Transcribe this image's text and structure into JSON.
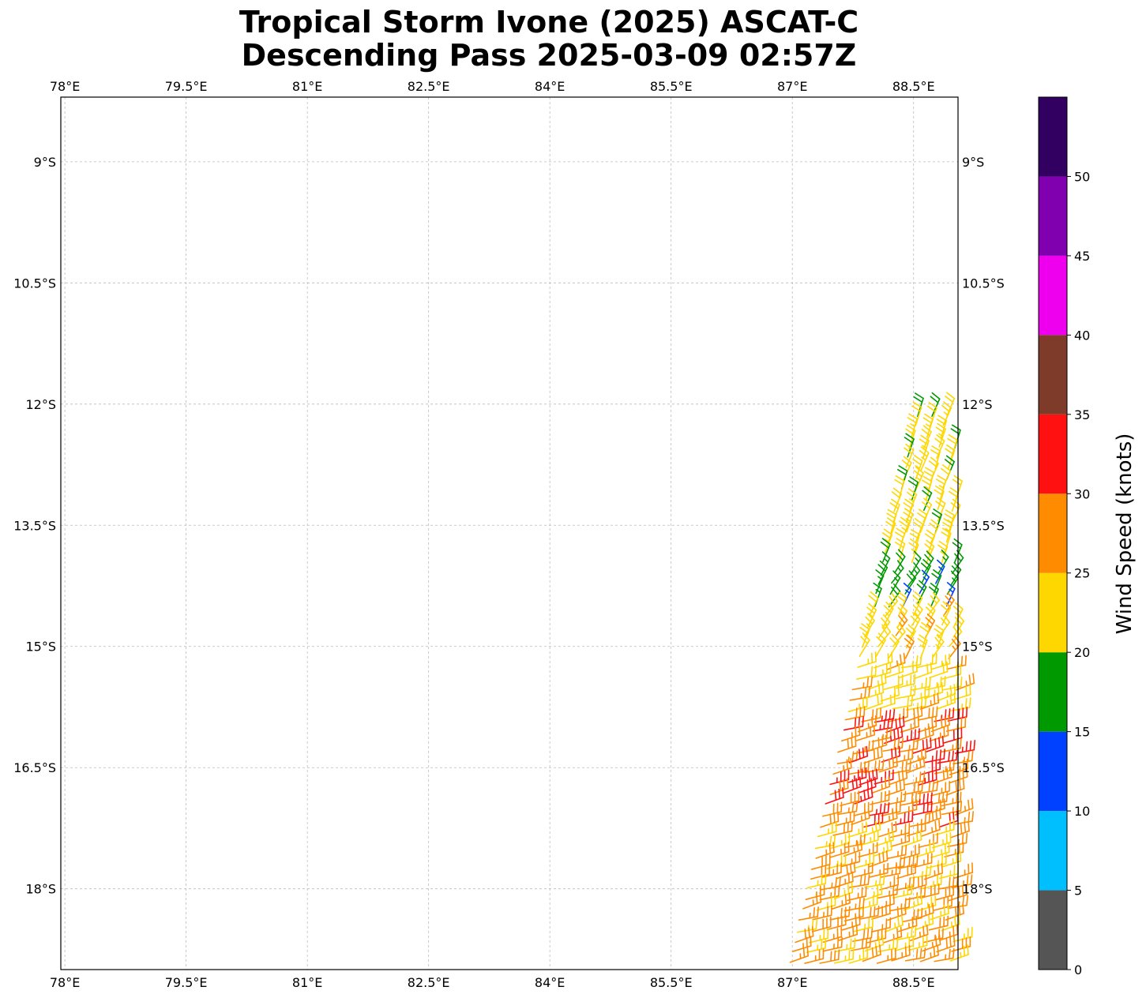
{
  "chart_data": {
    "type": "scatter",
    "subtype": "wind-barbs",
    "title": "Tropical Storm Ivone (2025) ASCAT-C",
    "subtitle": "Descending Pass 2025-03-09 02:57Z",
    "x_ticks": [
      "78°E",
      "79.5°E",
      "81°E",
      "82.5°E",
      "84°E",
      "85.5°E",
      "87°E",
      "88.5°E"
    ],
    "x_tick_values": [
      78,
      79.5,
      81,
      82.5,
      84,
      85.5,
      87,
      88.5
    ],
    "y_ticks": [
      "9°S",
      "10.5°S",
      "12°S",
      "13.5°S",
      "15°S",
      "16.5°S",
      "18°S"
    ],
    "y_tick_values": [
      -9,
      -10.5,
      -12,
      -13.5,
      -15,
      -16.5,
      -18
    ],
    "xlim": [
      77.95,
      89.05
    ],
    "ylim": [
      -19.0,
      -8.2
    ],
    "grid": true,
    "colorbar": {
      "label": "Wind Speed (knots)",
      "ticks": [
        "0",
        "5",
        "10",
        "15",
        "20",
        "25",
        "30",
        "35",
        "40",
        "45",
        "50"
      ],
      "bounds": [
        0,
        5,
        10,
        15,
        20,
        25,
        30,
        35,
        40,
        45,
        50,
        55
      ],
      "colors": [
        "#555555",
        "#00bfff",
        "#0040ff",
        "#009900",
        "#ffd700",
        "#ff8c00",
        "#ff1111",
        "#7f3b2a",
        "#ee00ee",
        "#8000b0",
        "#320060"
      ]
    },
    "barb_regions": [
      {
        "name": "north-swath",
        "lat_range": [
          -14.0,
          -12.1
        ],
        "speed_kt": 22
      },
      {
        "name": "green-band",
        "lat_range": [
          -14.6,
          -14.0
        ],
        "speed_kt": 17
      },
      {
        "name": "mid-swath",
        "lat_range": [
          -15.9,
          -14.6
        ],
        "speed_kt": 23
      },
      {
        "name": "core",
        "lat_range": [
          -17.3,
          -15.9
        ],
        "speed_kt": 28
      },
      {
        "name": "south-swath",
        "lat_range": [
          -19.0,
          -17.3
        ],
        "speed_kt": 26
      }
    ]
  }
}
